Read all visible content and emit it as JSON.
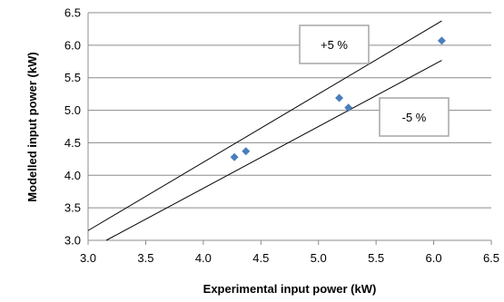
{
  "chart_data": {
    "type": "scatter",
    "xlabel": "Experimental input power (kW)",
    "ylabel": "Modelled input power (kW)",
    "xlim": [
      3.0,
      6.5
    ],
    "ylim": [
      3.0,
      6.5
    ],
    "xticks": [
      "3.0",
      "3.5",
      "4.0",
      "4.5",
      "5.0",
      "5.5",
      "6.0",
      "6.5"
    ],
    "yticks": [
      "3.0",
      "3.5",
      "4.0",
      "4.5",
      "5.0",
      "5.5",
      "6.0",
      "6.5"
    ],
    "grid": "horizontal",
    "marker_color": "#4a7ebb",
    "series": [
      {
        "points": [
          {
            "x": 4.27,
            "y": 4.28
          },
          {
            "x": 4.37,
            "y": 4.37
          },
          {
            "x": 5.18,
            "y": 5.19
          },
          {
            "x": 5.26,
            "y": 5.04
          },
          {
            "x": 6.07,
            "y": 6.07
          }
        ]
      }
    ],
    "reference_lines": [
      {
        "label": "+5 %",
        "factor": 1.05,
        "x_range": [
          3.0,
          6.07
        ]
      },
      {
        "label": "-5 %",
        "factor": 0.95,
        "x_range": [
          3.0,
          6.07
        ]
      }
    ],
    "annotations": [
      "+5 %",
      "-5 %"
    ]
  }
}
